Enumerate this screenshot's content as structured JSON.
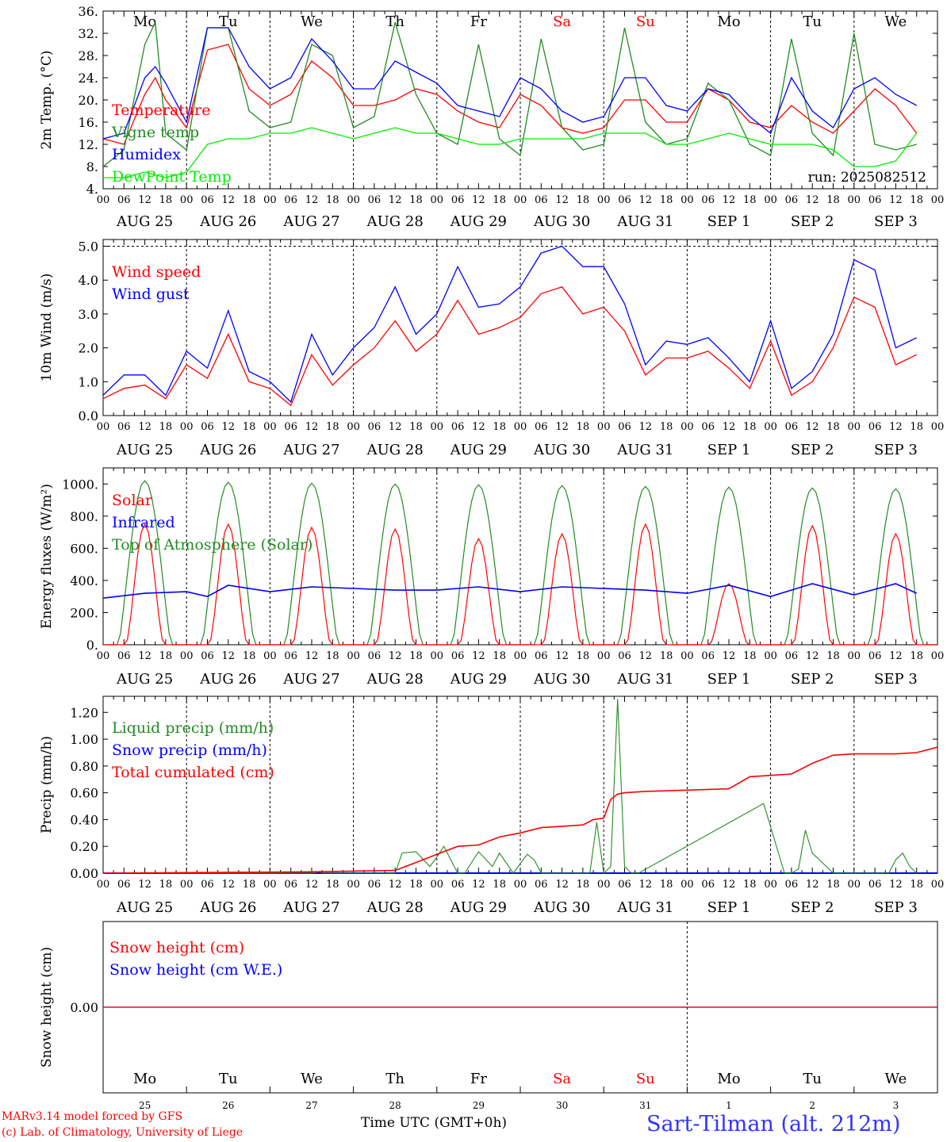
{
  "station": "Sart-Tilman (alt. 212m)",
  "credit_line1": "MARv3.14 model forced by GFS",
  "credit_line2": "(c) Lab. of Climatology, University of Liege",
  "x_title": "Time UTC (GMT+0h)",
  "day_names": [
    "Mo",
    "Tu",
    "We",
    "Th",
    "Fr",
    "Sa",
    "Su",
    "Mo",
    "Tu",
    "We"
  ],
  "day_name_colors": [
    "#000000",
    "#000000",
    "#000000",
    "#000000",
    "#000000",
    "#ff0000",
    "#ff0000",
    "#000000",
    "#000000",
    "#000000"
  ],
  "date_labels": [
    "AUG 25",
    "AUG 26",
    "AUG 27",
    "AUG 28",
    "AUG 29",
    "AUG 30",
    "AUG 31",
    "SEP  1",
    "SEP  2",
    "SEP  3"
  ],
  "day_numbers": [
    "25",
    "26",
    "27",
    "28",
    "29",
    "30",
    "31",
    "1",
    "2",
    "3"
  ],
  "hour_labels": [
    "00",
    "06",
    "12",
    "18"
  ],
  "chart_data": [
    {
      "type": "line",
      "ylabel": "2m Temp. (°C)",
      "ylim": [
        4,
        36
      ],
      "yticks": [
        "4.",
        "8.",
        "12.",
        "16.",
        "20.",
        "24.",
        "28.",
        "32.",
        "36."
      ],
      "annotation": "run: 2025082512",
      "x_unit": "hours since AUG 25 00 UTC",
      "series": [
        {
          "name": "Temperature",
          "color": "#ff0000",
          "x": [
            0,
            6,
            12,
            15,
            18,
            24,
            30,
            36,
            42,
            48,
            54,
            60,
            66,
            72,
            78,
            84,
            90,
            96,
            102,
            108,
            114,
            120,
            126,
            132,
            138,
            144,
            150,
            156,
            162,
            168,
            174,
            180,
            186,
            192,
            198,
            204,
            210,
            216,
            222,
            228,
            234
          ],
          "values": [
            13,
            12,
            21,
            24,
            20,
            15,
            29,
            30,
            22,
            19,
            21,
            27,
            24,
            19,
            19,
            20,
            22,
            21,
            18,
            16,
            15,
            21,
            19,
            15,
            14,
            15,
            20,
            20,
            16,
            16,
            22,
            20,
            16,
            15,
            19,
            16,
            14,
            18,
            22,
            19,
            14
          ]
        },
        {
          "name": "Vigne temp",
          "color": "#228b22",
          "x": [
            0,
            6,
            12,
            15,
            18,
            24,
            30,
            36,
            42,
            48,
            54,
            60,
            66,
            72,
            78,
            84,
            90,
            96,
            102,
            108,
            114,
            120,
            126,
            132,
            138,
            144,
            150,
            156,
            162,
            168,
            174,
            180,
            186,
            192,
            198,
            204,
            210,
            216,
            222,
            228,
            234
          ],
          "values": [
            8,
            11,
            30,
            34,
            14,
            11,
            33,
            33,
            18,
            15,
            16,
            30,
            28,
            15,
            17,
            34,
            21,
            14,
            12,
            30,
            13,
            10,
            31,
            15,
            11,
            12,
            33,
            16,
            12,
            13,
            23,
            20,
            12,
            10,
            31,
            14,
            10,
            32,
            12,
            11,
            12
          ]
        },
        {
          "name": "Humidex",
          "color": "#0000ff",
          "x": [
            0,
            6,
            12,
            15,
            18,
            24,
            30,
            36,
            42,
            48,
            54,
            60,
            66,
            72,
            78,
            84,
            90,
            96,
            102,
            108,
            114,
            120,
            126,
            132,
            138,
            144,
            150,
            156,
            162,
            168,
            174,
            180,
            186,
            192,
            198,
            204,
            210,
            216,
            222,
            228,
            234
          ],
          "values": [
            13,
            14,
            24,
            26,
            23,
            16,
            33,
            33,
            26,
            22,
            24,
            31,
            27,
            22,
            22,
            27,
            25,
            23,
            19,
            18,
            17,
            24,
            22,
            18,
            16,
            17,
            24,
            24,
            19,
            18,
            22,
            21,
            17,
            14,
            24,
            18,
            15,
            22,
            24,
            21,
            19
          ]
        },
        {
          "name": "DewPoint Temp",
          "color": "#00ee00",
          "x": [
            0,
            6,
            12,
            18,
            24,
            30,
            36,
            42,
            48,
            54,
            60,
            66,
            72,
            78,
            84,
            90,
            96,
            102,
            108,
            114,
            120,
            126,
            132,
            138,
            144,
            150,
            156,
            162,
            168,
            174,
            180,
            186,
            192,
            198,
            204,
            210,
            216,
            222,
            228,
            234
          ],
          "values": [
            6,
            6,
            7,
            6,
            7,
            12,
            13,
            13,
            14,
            14,
            15,
            14,
            13,
            14,
            15,
            14,
            14,
            13,
            12,
            12,
            13,
            13,
            13,
            13,
            14,
            14,
            14,
            12,
            12,
            13,
            14,
            13,
            12,
            12,
            12,
            11,
            8,
            8,
            9,
            14
          ]
        }
      ]
    },
    {
      "type": "line",
      "ylabel": "10m Wind (m/s)",
      "ylim": [
        0,
        5.2
      ],
      "yticks": [
        "0.0",
        "1.0",
        "2.0",
        "3.0",
        "4.0",
        "5.0"
      ],
      "x_unit": "hours since AUG 25 00 UTC",
      "series": [
        {
          "name": "Wind speed",
          "color": "#ff0000",
          "x": [
            0,
            6,
            12,
            18,
            24,
            30,
            36,
            42,
            48,
            54,
            60,
            66,
            72,
            78,
            84,
            90,
            96,
            102,
            108,
            114,
            120,
            126,
            132,
            138,
            144,
            150,
            156,
            162,
            168,
            174,
            180,
            186,
            192,
            198,
            204,
            210,
            216,
            222,
            228,
            234
          ],
          "values": [
            0.5,
            0.8,
            0.9,
            0.5,
            1.5,
            1.1,
            2.4,
            1.0,
            0.8,
            0.3,
            1.8,
            0.9,
            1.5,
            2.0,
            2.8,
            1.9,
            2.4,
            3.4,
            2.4,
            2.6,
            2.9,
            3.6,
            3.8,
            3.0,
            3.2,
            2.5,
            1.2,
            1.7,
            1.7,
            1.9,
            1.4,
            0.8,
            2.2,
            0.6,
            1.0,
            2.0,
            3.5,
            3.2,
            1.5,
            1.8
          ]
        },
        {
          "name": "Wind gust",
          "color": "#0000ff",
          "x": [
            0,
            6,
            12,
            18,
            24,
            30,
            36,
            42,
            48,
            54,
            60,
            66,
            72,
            78,
            84,
            90,
            96,
            102,
            108,
            114,
            120,
            126,
            132,
            138,
            144,
            150,
            156,
            162,
            168,
            174,
            180,
            186,
            192,
            198,
            204,
            210,
            216,
            222,
            228,
            234
          ],
          "values": [
            0.6,
            1.2,
            1.2,
            0.6,
            1.9,
            1.4,
            3.1,
            1.3,
            1.0,
            0.4,
            2.4,
            1.2,
            2.0,
            2.6,
            3.8,
            2.4,
            3.0,
            4.4,
            3.2,
            3.3,
            3.8,
            4.8,
            5.0,
            4.4,
            4.4,
            3.3,
            1.5,
            2.2,
            2.1,
            2.3,
            1.7,
            1.0,
            2.8,
            0.8,
            1.3,
            2.4,
            4.6,
            4.3,
            2.0,
            2.3
          ]
        }
      ]
    },
    {
      "type": "line",
      "ylabel": "Energy fluxes (W/m²)",
      "ylim": [
        0,
        1100
      ],
      "yticks": [
        "0.",
        "200.",
        "400.",
        "600.",
        "800.",
        "1000."
      ],
      "x_unit": "hours since AUG 25 00 UTC",
      "series": [
        {
          "name": "Solar",
          "color": "#ff0000",
          "days_peak": [
            750,
            750,
            730,
            720,
            660,
            690,
            750,
            380,
            740,
            690
          ]
        },
        {
          "name": "Infrared",
          "color": "#0000ff",
          "x": [
            0,
            12,
            24,
            30,
            36,
            48,
            60,
            72,
            84,
            96,
            108,
            120,
            132,
            144,
            156,
            168,
            180,
            192,
            204,
            216,
            228,
            234
          ],
          "values": [
            290,
            320,
            330,
            300,
            370,
            330,
            360,
            350,
            340,
            340,
            360,
            330,
            360,
            350,
            340,
            320,
            370,
            300,
            380,
            310,
            380,
            320
          ]
        },
        {
          "name": "Top of Atmosphere (Solar)",
          "color": "#228b22",
          "days_peak": [
            1020,
            1010,
            1005,
            1000,
            995,
            990,
            985,
            980,
            975,
            970
          ]
        }
      ]
    },
    {
      "type": "line",
      "ylabel": "Precip (mm/h)",
      "ylim": [
        0,
        1.32
      ],
      "yticks": [
        "0.00",
        "0.20",
        "0.40",
        "0.60",
        "0.80",
        "1.00",
        "1.20"
      ],
      "x_unit": "hours since AUG 25 00 UTC",
      "series": [
        {
          "name": "Liquid precip (mm/h)",
          "color": "#228b22",
          "x": [
            0,
            60,
            62,
            64,
            84,
            86,
            90,
            94,
            96,
            98,
            102,
            104,
            108,
            112,
            114,
            118,
            122,
            124,
            126,
            140,
            142,
            144,
            146,
            148,
            150,
            152,
            154,
            190,
            196,
            198,
            200,
            202,
            204,
            210,
            212,
            216,
            220,
            226,
            228,
            230,
            232,
            234
          ],
          "values": [
            0,
            0,
            0.01,
            0,
            0,
            0.15,
            0.16,
            0.05,
            0.12,
            0.2,
            0,
            0,
            0.16,
            0.05,
            0.15,
            0,
            0.14,
            0.1,
            0,
            0,
            0.38,
            0,
            0.05,
            1.3,
            0.05,
            0,
            0,
            0.52,
            0,
            0,
            0.03,
            0.32,
            0.15,
            0,
            0,
            0,
            0,
            0,
            0.1,
            0.15,
            0.05,
            0
          ]
        },
        {
          "name": "Snow precip (mm/h)",
          "color": "#0000ff",
          "x": [
            0,
            240
          ],
          "values": [
            0,
            0
          ]
        },
        {
          "name": "Total cumulated (cm)",
          "color": "#ff0000",
          "x": [
            0,
            60,
            84,
            90,
            96,
            102,
            108,
            114,
            120,
            126,
            132,
            138,
            141,
            144,
            146,
            148,
            150,
            156,
            168,
            180,
            186,
            192,
            198,
            204,
            210,
            216,
            222,
            228,
            234,
            240
          ],
          "values": [
            0,
            0.01,
            0.02,
            0.08,
            0.14,
            0.2,
            0.21,
            0.27,
            0.3,
            0.34,
            0.35,
            0.36,
            0.4,
            0.41,
            0.55,
            0.59,
            0.6,
            0.61,
            0.62,
            0.63,
            0.72,
            0.73,
            0.74,
            0.82,
            0.88,
            0.89,
            0.89,
            0.89,
            0.9,
            0.94
          ]
        }
      ]
    },
    {
      "type": "line",
      "ylabel": "Snow height (cm)",
      "yticks": [
        "0.00"
      ],
      "series": [
        {
          "name": "Snow height (cm)",
          "color": "#ff0000",
          "x": [
            0,
            240
          ],
          "values": [
            0,
            0
          ]
        },
        {
          "name": "Snow height (cm W.E.)",
          "color": "#0000ff",
          "x": [
            0,
            240
          ],
          "values": [
            0,
            0
          ]
        }
      ]
    }
  ]
}
